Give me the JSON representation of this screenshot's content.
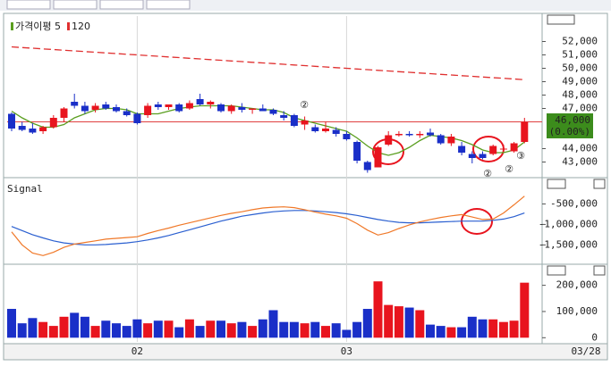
{
  "chart_data": [
    {
      "type": "candlestick",
      "up_color": "#e8141e",
      "down_color": "#1a2fc8",
      "open": [
        46600,
        45700,
        45500,
        45300,
        45600,
        46300,
        47500,
        47200,
        46900,
        47300,
        47100,
        46800,
        46600,
        46500,
        47300,
        47100,
        47300,
        47000,
        47700,
        47300,
        47300,
        46800,
        47100,
        46900,
        47000,
        46900,
        46500,
        46500,
        45800,
        45600,
        45300,
        45400,
        45100,
        44500,
        43000,
        42600,
        44300,
        45000,
        45100,
        45000,
        45200,
        45000,
        44400,
        44200,
        43600,
        43600,
        43600,
        44000,
        43800,
        44500
      ],
      "high": [
        46700,
        46000,
        45900,
        45700,
        46500,
        47100,
        48100,
        47500,
        47400,
        47500,
        47300,
        47000,
        46700,
        47400,
        47500,
        47300,
        47400,
        47600,
        48100,
        47600,
        47400,
        47300,
        47400,
        47000,
        47300,
        47000,
        46800,
        46600,
        46400,
        45800,
        46000,
        45600,
        45300,
        44600,
        43100,
        44200,
        45300,
        45300,
        45300,
        45300,
        45500,
        45100,
        45100,
        44500,
        43800,
        43800,
        44300,
        44300,
        44500,
        46300
      ],
      "low": [
        45300,
        45300,
        45100,
        45100,
        45500,
        46000,
        47000,
        46600,
        46700,
        46900,
        46700,
        46400,
        45800,
        46300,
        46900,
        46900,
        46700,
        46900,
        47200,
        47000,
        46700,
        46600,
        46700,
        46600,
        46800,
        46500,
        46100,
        45600,
        45400,
        45200,
        45200,
        44900,
        44600,
        42900,
        42200,
        42600,
        44200,
        44900,
        44900,
        44800,
        44900,
        44300,
        44200,
        43500,
        42900,
        43200,
        43500,
        43800,
        43700,
        44400
      ],
      "close": [
        45500,
        45400,
        45200,
        45600,
        46300,
        47000,
        47200,
        46800,
        47200,
        47000,
        46800,
        46500,
        45900,
        47200,
        47100,
        47300,
        46800,
        47400,
        47300,
        47500,
        46800,
        47200,
        46900,
        47000,
        46800,
        46600,
        46300,
        45700,
        46100,
        45300,
        45500,
        45100,
        44700,
        43100,
        42400,
        44100,
        45000,
        45100,
        45000,
        45100,
        45000,
        44400,
        44900,
        43700,
        43300,
        43300,
        44200,
        44000,
        44400,
        46000
      ],
      "series": [
        {
          "name": "가격이평 5",
          "color": "#5a9e1f",
          "values": [
            46800,
            46300,
            45900,
            45600,
            45600,
            45800,
            46300,
            46600,
            46900,
            47000,
            47000,
            46900,
            46600,
            46600,
            46600,
            46800,
            47000,
            47100,
            47200,
            47200,
            47200,
            47200,
            47100,
            47000,
            46900,
            46900,
            46700,
            46300,
            46100,
            45900,
            45700,
            45500,
            45300,
            44800,
            44200,
            43700,
            43500,
            43700,
            44100,
            44600,
            45000,
            44900,
            44800,
            44600,
            44300,
            43900,
            43700,
            43700,
            43900,
            44500
          ]
        },
        {
          "name": "120",
          "color": "#e03030",
          "dash": true,
          "values": [
            51600,
            51550,
            51500,
            51450,
            51400,
            51350,
            51300,
            51250,
            51200,
            51150,
            51100,
            51050,
            51000,
            50950,
            50900,
            50850,
            50800,
            50750,
            50700,
            50650,
            50600,
            50550,
            50500,
            50450,
            50400,
            50350,
            50300,
            50250,
            50200,
            50150,
            50100,
            50050,
            50000,
            49950,
            49900,
            49850,
            49800,
            49750,
            49700,
            49650,
            49600,
            49550,
            49500,
            49450,
            49400,
            49350,
            49300,
            49250,
            49200,
            49150
          ]
        }
      ],
      "ylim": [
        41900,
        53900
      ],
      "yticks": [
        {
          "value": 52000,
          "label": "52,000"
        },
        {
          "value": 51000,
          "label": "51,000"
        },
        {
          "value": 50000,
          "label": "50,000"
        },
        {
          "value": 49000,
          "label": "49,000"
        },
        {
          "value": 48000,
          "label": "48,000"
        },
        {
          "value": 47000,
          "label": "47,000"
        },
        {
          "value": 44000,
          "label": "44,000"
        },
        {
          "value": 43000,
          "label": "43,000"
        }
      ],
      "current_price": {
        "value": 46000,
        "label": "46,000"
      },
      "change_label": "(0.00%)",
      "annotations": [
        {
          "text": "②",
          "color": "#2040c0"
        },
        {
          "text": "②",
          "color": "#e8141e"
        },
        {
          "text": "②",
          "color": "#e8141e"
        },
        {
          "text": "③",
          "color": "#e8141e"
        }
      ]
    },
    {
      "type": "line",
      "series": [
        {
          "name": "Signal",
          "color": "#2a5fd0",
          "values": [
            -1050000,
            -1150000,
            -1250000,
            -1330000,
            -1400000,
            -1450000,
            -1480000,
            -1500000,
            -1500000,
            -1490000,
            -1470000,
            -1450000,
            -1420000,
            -1380000,
            -1330000,
            -1270000,
            -1200000,
            -1130000,
            -1060000,
            -990000,
            -920000,
            -860000,
            -800000,
            -760000,
            -720000,
            -690000,
            -670000,
            -660000,
            -660000,
            -670000,
            -690000,
            -710000,
            -740000,
            -780000,
            -830000,
            -880000,
            -920000,
            -950000,
            -960000,
            -960000,
            -950000,
            -940000,
            -930000,
            -920000,
            -920000,
            -920000,
            -900000,
            -870000,
            -810000,
            -720000
          ]
        },
        {
          "color": "#f07828",
          "values": [
            -1180000,
            -1500000,
            -1700000,
            -1760000,
            -1680000,
            -1560000,
            -1480000,
            -1440000,
            -1400000,
            -1360000,
            -1340000,
            -1320000,
            -1300000,
            -1220000,
            -1150000,
            -1090000,
            -1020000,
            -960000,
            -900000,
            -840000,
            -780000,
            -730000,
            -690000,
            -640000,
            -600000,
            -580000,
            -570000,
            -590000,
            -640000,
            -700000,
            -750000,
            -790000,
            -850000,
            -980000,
            -1140000,
            -1260000,
            -1200000,
            -1100000,
            -1010000,
            -940000,
            -880000,
            -830000,
            -790000,
            -760000,
            -820000,
            -880000,
            -870000,
            -720000,
            -520000,
            -310000
          ]
        }
      ],
      "ylim": [
        -1950000,
        120000
      ],
      "yticks": [
        {
          "value": -500000,
          "label": "-500,000"
        },
        {
          "value": -1000000,
          "label": "-1,000,000"
        },
        {
          "value": -1500000,
          "label": "-1,500,000"
        }
      ]
    },
    {
      "type": "bar",
      "categories": [
        null,
        null,
        null,
        null,
        null,
        null,
        null,
        null,
        null,
        null,
        null,
        null,
        "02",
        null,
        null,
        null,
        null,
        null,
        null,
        null,
        null,
        null,
        null,
        null,
        null,
        null,
        null,
        null,
        null,
        null,
        null,
        null,
        "03",
        null,
        null,
        null,
        null,
        null,
        null,
        null,
        null,
        null,
        null,
        null,
        null,
        null,
        null,
        null,
        null,
        null
      ],
      "values": [
        110000,
        55000,
        75000,
        60000,
        45000,
        80000,
        95000,
        80000,
        45000,
        65000,
        55000,
        45000,
        70000,
        55000,
        65000,
        65000,
        40000,
        70000,
        45000,
        65000,
        65000,
        55000,
        60000,
        45000,
        70000,
        105000,
        60000,
        60000,
        55000,
        60000,
        45000,
        55000,
        30000,
        60000,
        110000,
        215000,
        125000,
        120000,
        115000,
        105000,
        50000,
        45000,
        40000,
        40000,
        80000,
        70000,
        70000,
        60000,
        65000,
        210000
      ],
      "ylim": [
        -16000,
        277000
      ],
      "yticks": [
        {
          "value": 200000,
          "label": "200,000"
        },
        {
          "value": 100000,
          "label": "100,000"
        },
        0
      ],
      "x_end_label": "03/28"
    }
  ]
}
